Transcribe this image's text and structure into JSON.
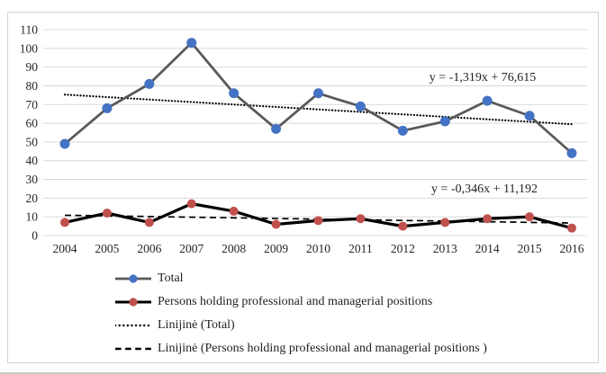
{
  "chart_data": {
    "type": "line",
    "title": "",
    "xlabel": "",
    "ylabel": "",
    "categories": [
      "2004",
      "2005",
      "2006",
      "2007",
      "2008",
      "2009",
      "2010",
      "2011",
      "2012",
      "2013",
      "2014",
      "2015",
      "2016"
    ],
    "ylim": [
      0,
      110
    ],
    "ytick_step": 10,
    "grid": true,
    "legend_position": "bottom-left",
    "series": [
      {
        "name": "Total",
        "values": [
          49,
          68,
          81,
          103,
          76,
          57,
          76,
          69,
          56,
          61,
          72,
          64,
          44
        ],
        "line_color": "#595959",
        "marker_color": "#4472C4",
        "line_width": 2.75,
        "marker_radius": 5.5
      },
      {
        "name": "Persons holding professional and managerial positions",
        "values": [
          7,
          12,
          7,
          17,
          13,
          6,
          8,
          9,
          5,
          7,
          9,
          10,
          4
        ],
        "line_color": "#000000",
        "marker_color": "#C0504D",
        "line_width": 3.25,
        "marker_radius": 5
      }
    ],
    "trendlines": [
      {
        "name": "Linijinė (Total)",
        "equation": "y = -1,319x + 76,615",
        "slope": -1.319,
        "intercept": 76.615,
        "style": "dotted",
        "color": "#000000"
      },
      {
        "name": "Linijinė (Persons holding professional and managerial positions )",
        "equation": "y = -0,346x + 11,192",
        "slope": -0.346,
        "intercept": 11.192,
        "style": "dashed",
        "color": "#000000"
      }
    ],
    "colors": {
      "gridline": "#D9D9D9",
      "axis_text": "#262626",
      "frame_border": "#D2D2D2"
    }
  }
}
